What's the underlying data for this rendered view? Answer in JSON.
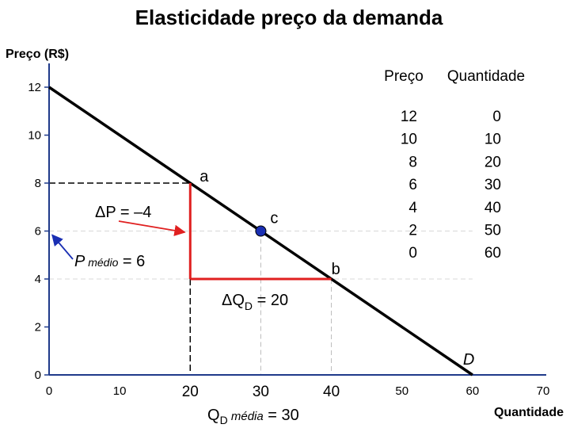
{
  "chart_data": {
    "type": "line",
    "title": "Elasticidade preço da demanda",
    "ylabel": "Preço (R$)",
    "xlabel": "Quantidade",
    "xlim": [
      0,
      70
    ],
    "ylim": [
      0,
      12
    ],
    "x_ticks": [
      {
        "value": 0,
        "label": "0",
        "emph": false
      },
      {
        "value": 10,
        "label": "10",
        "emph": false
      },
      {
        "value": 20,
        "label": "20",
        "emph": true
      },
      {
        "value": 30,
        "label": "30",
        "emph": true
      },
      {
        "value": 40,
        "label": "40",
        "emph": true
      },
      {
        "value": 50,
        "label": "50",
        "emph": false
      },
      {
        "value": 60,
        "label": "60",
        "emph": false
      },
      {
        "value": 70,
        "label": "70",
        "emph": false
      }
    ],
    "y_ticks": [
      {
        "value": 0,
        "label": "0"
      },
      {
        "value": 2,
        "label": "2"
      },
      {
        "value": 4,
        "label": "4"
      },
      {
        "value": 6,
        "label": "6"
      },
      {
        "value": 8,
        "label": "8"
      },
      {
        "value": 10,
        "label": "10"
      },
      {
        "value": 12,
        "label": "12"
      }
    ],
    "series": [
      {
        "name": "D",
        "x": [
          0,
          60
        ],
        "y": [
          12,
          0
        ],
        "color": "#000000"
      }
    ],
    "points": [
      {
        "label": "a",
        "x": 20,
        "y": 8
      },
      {
        "label": "b",
        "x": 40,
        "y": 4
      },
      {
        "label": "c",
        "x": 30,
        "y": 6,
        "marker_color": "#1a2fb3"
      }
    ],
    "delta_color": "#e02020",
    "arrow_color": "#1a2fb3",
    "annotations": {
      "delta_p": "ΔP = –4",
      "p_medio_prefix": "P",
      "p_medio_sub": " médio",
      "p_medio_suffix": " = 6",
      "delta_q_prefix": "ΔQ",
      "delta_q_sub": "D",
      "delta_q_suffix": " = 20",
      "q_media_prefix": "Q",
      "q_media_sub": "D",
      "q_media_label": " média",
      "q_media_suffix": " = 30"
    },
    "table": {
      "headers": [
        "Preço",
        "Quantidade"
      ],
      "rows": [
        [
          "12",
          "0"
        ],
        [
          "10",
          "10"
        ],
        [
          "8",
          "20"
        ],
        [
          "6",
          "30"
        ],
        [
          "4",
          "40"
        ],
        [
          "2",
          "50"
        ],
        [
          "0",
          "60"
        ]
      ]
    }
  }
}
